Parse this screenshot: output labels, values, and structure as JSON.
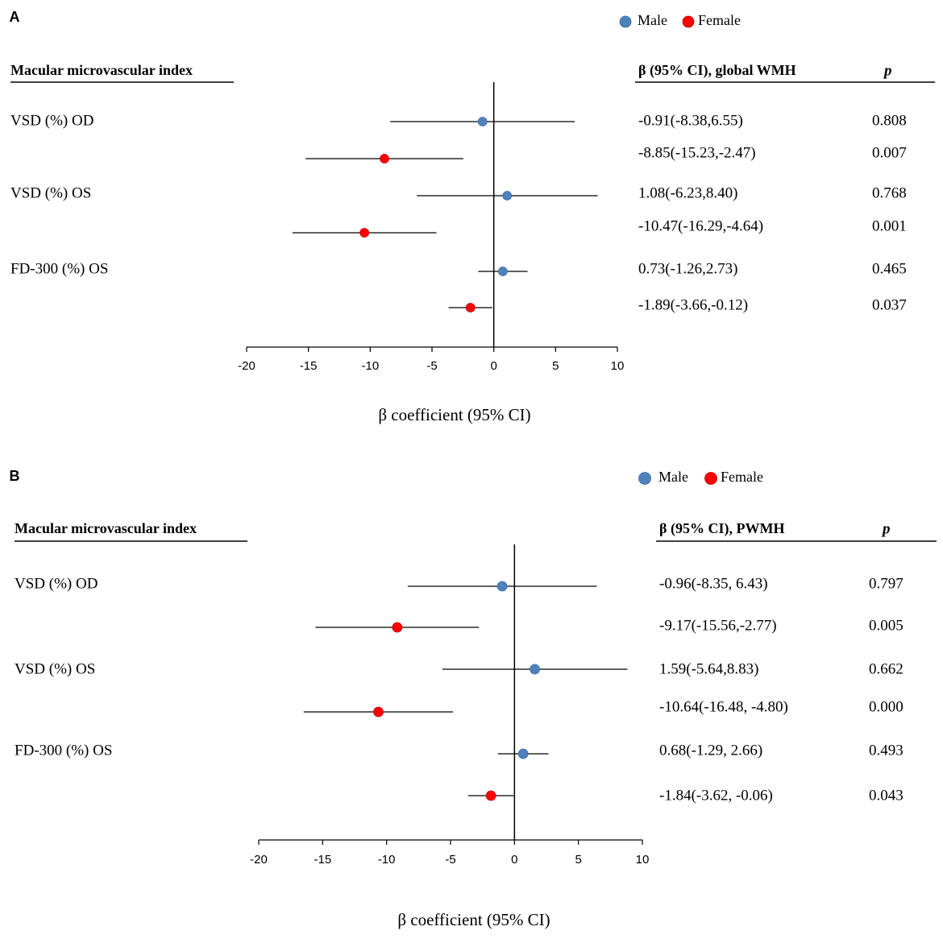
{
  "chart_data": [
    {
      "type": "forest",
      "panel_label": "A",
      "legend": [
        {
          "name": "Male",
          "color": "#4f81bd"
        },
        {
          "name": "Female",
          "color": "#ff0000"
        }
      ],
      "index_header": "Macular microvascular index",
      "beta_header": "β (95% CI), global WMH",
      "p_header": "p",
      "row_labels": [
        "VSD (%) OD",
        "VSD (%) OS",
        "FD-300 (%) OS"
      ],
      "rows": [
        {
          "group": "Male",
          "estimate": -0.91,
          "lower": -8.38,
          "upper": 6.55,
          "ci_text": "-0.91(-8.38,6.55)",
          "p": "0.808"
        },
        {
          "group": "Female",
          "estimate": -8.85,
          "lower": -15.23,
          "upper": -2.47,
          "ci_text": "-8.85(-15.23,-2.47)",
          "p": "0.007"
        },
        {
          "group": "Male",
          "estimate": 1.08,
          "lower": -6.23,
          "upper": 8.4,
          "ci_text": "1.08(-6.23,8.40)",
          "p": "0.768"
        },
        {
          "group": "Female",
          "estimate": -10.47,
          "lower": -16.29,
          "upper": -4.64,
          "ci_text": "-10.47(-16.29,-4.64)",
          "p": "0.001"
        },
        {
          "group": "Male",
          "estimate": 0.73,
          "lower": -1.26,
          "upper": 2.73,
          "ci_text": "0.73(-1.26,2.73)",
          "p": "0.465"
        },
        {
          "group": "Female",
          "estimate": -1.89,
          "lower": -3.66,
          "upper": -0.12,
          "ci_text": "-1.89(-3.66,-0.12)",
          "p": "0.037"
        }
      ],
      "xlim": [
        -20,
        10
      ],
      "xticks": [
        "-20",
        "-15",
        "-10",
        "-5",
        "0",
        "5",
        "10"
      ],
      "xlabel": "β coefficient (95% CI)"
    },
    {
      "type": "forest",
      "panel_label": "B",
      "legend": [
        {
          "name": "Male",
          "color": "#4f81bd"
        },
        {
          "name": "Female",
          "color": "#ff0000"
        }
      ],
      "index_header": "Macular microvascular index",
      "beta_header": "β (95% CI), PWMH",
      "p_header": "p",
      "row_labels": [
        "VSD (%) OD",
        "VSD (%) OS",
        "FD-300 (%) OS"
      ],
      "rows": [
        {
          "group": "Male",
          "estimate": -0.96,
          "lower": -8.35,
          "upper": 6.43,
          "ci_text": "-0.96(-8.35, 6.43)",
          "p": "0.797"
        },
        {
          "group": "Female",
          "estimate": -9.17,
          "lower": -15.56,
          "upper": -2.77,
          "ci_text": "-9.17(-15.56,-2.77)",
          "p": "0.005"
        },
        {
          "group": "Male",
          "estimate": 1.59,
          "lower": -5.64,
          "upper": 8.83,
          "ci_text": "1.59(-5.64,8.83)",
          "p": "0.662"
        },
        {
          "group": "Female",
          "estimate": -10.64,
          "lower": -16.48,
          "upper": -4.8,
          "ci_text": "-10.64(-16.48, -4.80)",
          "p": "0.000"
        },
        {
          "group": "Male",
          "estimate": 0.68,
          "lower": -1.29,
          "upper": 2.66,
          "ci_text": "0.68(-1.29, 2.66)",
          "p": "0.493"
        },
        {
          "group": "Female",
          "estimate": -1.84,
          "lower": -3.62,
          "upper": -0.06,
          "ci_text": "-1.84(-3.62, -0.06)",
          "p": "0.043"
        }
      ],
      "xlim": [
        -20,
        10
      ],
      "xticks": [
        "-20",
        "-15",
        "-10",
        "-5",
        "0",
        "5",
        "10"
      ],
      "xlabel": "β coefficient (95% CI)"
    }
  ]
}
